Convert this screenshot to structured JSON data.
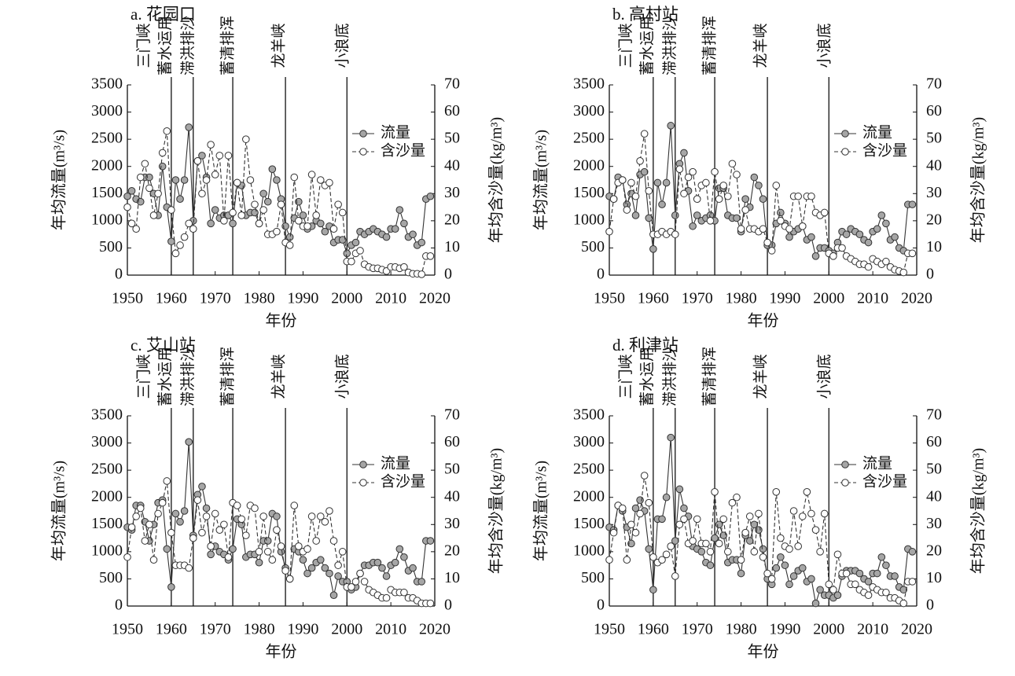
{
  "chart_data": [
    {
      "type": "line",
      "title": "a. 花园口",
      "xlabel": "年份",
      "ylabel": "年均流量(m³/s)",
      "y2label": "年均含沙量(kg/m³)",
      "x": [
        1950,
        1951,
        1952,
        1953,
        1954,
        1955,
        1956,
        1957,
        1958,
        1959,
        1960,
        1961,
        1962,
        1963,
        1964,
        1965,
        1966,
        1967,
        1968,
        1969,
        1970,
        1971,
        1972,
        1973,
        1974,
        1975,
        1976,
        1977,
        1978,
        1979,
        1980,
        1981,
        1982,
        1983,
        1984,
        1985,
        1986,
        1987,
        1988,
        1989,
        1990,
        1991,
        1992,
        1993,
        1994,
        1995,
        1996,
        1997,
        1998,
        1999,
        2000,
        2001,
        2002,
        2003,
        2004,
        2005,
        2006,
        2007,
        2008,
        2009,
        2010,
        2011,
        2012,
        2013,
        2014,
        2015,
        2016,
        2017,
        2018,
        2019
      ],
      "series": [
        {
          "name": "流量",
          "color": "#333333",
          "marker_fill": "#a6a6a6",
          "values": [
            1450,
            1550,
            1400,
            1350,
            1800,
            1800,
            1500,
            1100,
            2000,
            1250,
            620,
            1750,
            1400,
            1750,
            2720,
            1000,
            2100,
            2200,
            1800,
            950,
            1200,
            1050,
            1100,
            1100,
            950,
            1700,
            1650,
            1100,
            1150,
            1150,
            950,
            1500,
            1350,
            1950,
            1750,
            1400,
            900,
            700,
            1050,
            1350,
            1100,
            850,
            900,
            1000,
            950,
            800,
            900,
            600,
            650,
            650,
            400,
            550,
            600,
            800,
            750,
            800,
            850,
            800,
            750,
            700,
            850,
            850,
            1200,
            950,
            700,
            750,
            550,
            600,
            1400,
            1450
          ]
        },
        {
          "name": "含沙量",
          "color": "#333333",
          "marker_fill": "#ffffff",
          "axis": "y2",
          "values": [
            25,
            19,
            17,
            36,
            41,
            32,
            22,
            30,
            45,
            53,
            24,
            8,
            11,
            14,
            19,
            17,
            42,
            30,
            35,
            48,
            37,
            44,
            20,
            44,
            23,
            34,
            22,
            50,
            35,
            26,
            19,
            24,
            15,
            15,
            16,
            26,
            12,
            11,
            36,
            20,
            18,
            18,
            37,
            22,
            35,
            33,
            34,
            17,
            26,
            23,
            5,
            5,
            8,
            9,
            4,
            3,
            2.5,
            2.5,
            2,
            1.5,
            3,
            3,
            2.5,
            3,
            1,
            0.5,
            0.5,
            0.3,
            7,
            7
          ]
        }
      ],
      "xlim": [
        1950,
        2020
      ],
      "xticks": [
        1950,
        1960,
        1970,
        1980,
        1990,
        2000,
        2010,
        2020
      ],
      "ylim": [
        0,
        3500
      ],
      "yticks": [
        0,
        500,
        1000,
        1500,
        2000,
        2500,
        3000,
        3500
      ],
      "y2lim": [
        0,
        70
      ],
      "y2ticks": [
        0,
        10,
        20,
        30,
        40,
        50,
        60,
        70
      ],
      "event_labels": [
        "三门峡",
        "蓄水运用",
        "滞洪排沙",
        "蓄清排浑",
        "龙羊峡",
        "小浪底"
      ],
      "event_lines": [
        1960,
        1965,
        1974,
        1986,
        2000
      ],
      "legend": "upper right"
    },
    {
      "type": "line",
      "title": "b. 高村站",
      "xlabel": "年份",
      "ylabel": "年均流量(m³/s)",
      "y2label": "年均含沙量(kg/m³)",
      "x": [
        1950,
        1951,
        1952,
        1953,
        1954,
        1955,
        1956,
        1957,
        1958,
        1959,
        1960,
        1961,
        1962,
        1963,
        1964,
        1965,
        1966,
        1967,
        1968,
        1969,
        1970,
        1971,
        1972,
        1973,
        1974,
        1975,
        1976,
        1977,
        1978,
        1979,
        1980,
        1981,
        1982,
        1983,
        1984,
        1985,
        1986,
        1987,
        1988,
        1989,
        1990,
        1991,
        1992,
        1993,
        1994,
        1995,
        1996,
        1997,
        1998,
        1999,
        2000,
        2001,
        2002,
        2003,
        2004,
        2005,
        2006,
        2007,
        2008,
        2009,
        2010,
        2011,
        2012,
        2013,
        2014,
        2015,
        2016,
        2017,
        2018,
        2019
      ],
      "series": [
        {
          "name": "流量",
          "color": "#333333",
          "marker_fill": "#a6a6a6",
          "values": [
            1450,
            1400,
            1800,
            1750,
            1300,
            1500,
            1100,
            1850,
            1900,
            1050,
            480,
            1700,
            1300,
            1700,
            2750,
            1100,
            2050,
            2250,
            1550,
            900,
            1100,
            1000,
            1050,
            1100,
            1000,
            1600,
            1600,
            1100,
            1050,
            1050,
            800,
            1400,
            1250,
            1800,
            1650,
            1400,
            550,
            550,
            950,
            1150,
            950,
            700,
            800,
            850,
            900,
            650,
            700,
            350,
            500,
            500,
            450,
            400,
            600,
            800,
            750,
            850,
            800,
            750,
            650,
            600,
            800,
            850,
            1100,
            950,
            650,
            700,
            500,
            450,
            1300,
            1300
          ]
        },
        {
          "name": "含沙量",
          "color": "#333333",
          "marker_fill": "#ffffff",
          "axis": "y2",
          "values": [
            16,
            28,
            34,
            35,
            24,
            34,
            29,
            42,
            52,
            31,
            15,
            15,
            16,
            15,
            16,
            15,
            39,
            30,
            36,
            38,
            28,
            33,
            34,
            20,
            38,
            28,
            33,
            29,
            41,
            37,
            17,
            24,
            17,
            17,
            16,
            17,
            12,
            9,
            33,
            20,
            18,
            17,
            29,
            29,
            18,
            29,
            29,
            23,
            22,
            23,
            8,
            7,
            10,
            10,
            7,
            6,
            5,
            4,
            4,
            3,
            6,
            5,
            4,
            5,
            3,
            2,
            1.5,
            1,
            8,
            8
          ]
        }
      ],
      "xlim": [
        1950,
        2020
      ],
      "xticks": [
        1950,
        1960,
        1970,
        1980,
        1990,
        2000,
        2010,
        2020
      ],
      "ylim": [
        0,
        3500
      ],
      "yticks": [
        0,
        500,
        1000,
        1500,
        2000,
        2500,
        3000,
        3500
      ],
      "y2lim": [
        0,
        70
      ],
      "y2ticks": [
        0,
        10,
        20,
        30,
        40,
        50,
        60,
        70
      ],
      "event_labels": [
        "三门峡",
        "蓄水运用",
        "滞洪排沙",
        "蓄清排浑",
        "龙羊峡",
        "小浪底"
      ],
      "event_lines": [
        1960,
        1965,
        1974,
        1986,
        2000
      ],
      "legend": "upper right"
    },
    {
      "type": "line",
      "title": "c. 艾山站",
      "xlabel": "年份",
      "ylabel": "年均流量(m³/s)",
      "y2label": "年均含沙量(kg/m³)",
      "x": [
        1950,
        1951,
        1952,
        1953,
        1954,
        1955,
        1956,
        1957,
        1958,
        1959,
        1960,
        1961,
        1962,
        1963,
        1964,
        1965,
        1966,
        1967,
        1968,
        1969,
        1970,
        1971,
        1972,
        1973,
        1974,
        1975,
        1976,
        1977,
        1978,
        1979,
        1980,
        1981,
        1982,
        1983,
        1984,
        1985,
        1986,
        1987,
        1988,
        1989,
        1990,
        1991,
        1992,
        1993,
        1994,
        1995,
        1996,
        1997,
        1998,
        1999,
        2000,
        2001,
        2002,
        2003,
        2004,
        2005,
        2006,
        2007,
        2008,
        2009,
        2010,
        2011,
        2012,
        2013,
        2014,
        2015,
        2016,
        2017,
        2018,
        2019
      ],
      "series": [
        {
          "name": "流量",
          "color": "#333333",
          "marker_fill": "#a6a6a6",
          "values": [
            1450,
            1400,
            1850,
            1850,
            1550,
            1200,
            1500,
            1900,
            1950,
            1050,
            350,
            1700,
            1550,
            1750,
            3020,
            1300,
            2050,
            2200,
            1800,
            950,
            1100,
            1000,
            950,
            850,
            1050,
            1600,
            1500,
            900,
            950,
            950,
            800,
            1200,
            1200,
            1700,
            1650,
            1000,
            700,
            500,
            1050,
            1000,
            850,
            600,
            700,
            800,
            850,
            700,
            600,
            200,
            550,
            450,
            450,
            300,
            350,
            600,
            750,
            750,
            800,
            800,
            700,
            550,
            750,
            800,
            1050,
            900,
            650,
            700,
            450,
            450,
            1200,
            1200
          ]
        },
        {
          "name": "含沙量",
          "color": "#333333",
          "marker_fill": "#ffffff",
          "axis": "y2",
          "values": [
            18,
            29,
            33,
            36,
            24,
            30,
            17,
            34,
            38,
            46,
            27,
            15,
            15,
            15,
            14,
            25,
            39,
            27,
            33,
            22,
            34,
            28,
            30,
            18,
            38,
            37,
            32,
            26,
            37,
            36,
            20,
            33,
            20,
            17,
            28,
            22,
            13,
            10,
            37,
            22,
            20,
            21,
            33,
            24,
            33,
            31,
            35,
            24,
            15,
            20,
            7,
            7,
            9,
            12,
            9,
            6,
            5,
            4,
            3,
            3,
            6,
            5,
            5,
            5,
            3,
            3,
            2,
            1,
            1,
            1
          ]
        }
      ],
      "xlim": [
        1950,
        2020
      ],
      "xticks": [
        1950,
        1960,
        1970,
        1980,
        1990,
        2000,
        2010,
        2020
      ],
      "ylim": [
        0,
        3500
      ],
      "yticks": [
        0,
        500,
        1000,
        1500,
        2000,
        2500,
        3000,
        3500
      ],
      "y2lim": [
        0,
        70
      ],
      "y2ticks": [
        0,
        10,
        20,
        30,
        40,
        50,
        60,
        70
      ],
      "event_labels": [
        "三门峡",
        "蓄水运用",
        "滞洪排沙",
        "蓄清排浑",
        "龙羊峡",
        "小浪底"
      ],
      "event_lines": [
        1960,
        1965,
        1974,
        1986,
        2000
      ],
      "legend": "upper right"
    },
    {
      "type": "line",
      "title": "d. 利津站",
      "xlabel": "年份",
      "ylabel": "年均流量(m³/s)",
      "y2label": "年均含沙量(kg/m³)",
      "x": [
        1950,
        1951,
        1952,
        1953,
        1954,
        1955,
        1956,
        1957,
        1958,
        1959,
        1960,
        1961,
        1962,
        1963,
        1964,
        1965,
        1966,
        1967,
        1968,
        1969,
        1970,
        1971,
        1972,
        1973,
        1974,
        1975,
        1976,
        1977,
        1978,
        1979,
        1980,
        1981,
        1982,
        1983,
        1984,
        1985,
        1986,
        1987,
        1988,
        1989,
        1990,
        1991,
        1992,
        1993,
        1994,
        1995,
        1996,
        1997,
        1998,
        1999,
        2000,
        2001,
        2002,
        2003,
        2004,
        2005,
        2006,
        2007,
        2008,
        2009,
        2010,
        2011,
        2012,
        2013,
        2014,
        2015,
        2016,
        2017,
        2018,
        2019
      ],
      "series": [
        {
          "name": "流量",
          "color": "#333333",
          "marker_fill": "#a6a6a6",
          "values": [
            1450,
            1400,
            1850,
            1750,
            1450,
            1150,
            1800,
            1950,
            1750,
            1050,
            300,
            1600,
            1600,
            2000,
            3100,
            1200,
            2150,
            1800,
            1650,
            1100,
            1050,
            1000,
            800,
            750,
            1250,
            1500,
            1300,
            800,
            850,
            850,
            600,
            1300,
            1200,
            1500,
            1400,
            1050,
            500,
            400,
            700,
            900,
            750,
            400,
            550,
            650,
            700,
            450,
            500,
            50,
            300,
            200,
            200,
            150,
            200,
            550,
            650,
            650,
            650,
            600,
            500,
            450,
            600,
            600,
            900,
            750,
            550,
            550,
            350,
            300,
            1050,
            1000
          ]
        },
        {
          "name": "含沙量",
          "color": "#333333",
          "marker_fill": "#ffffff",
          "axis": "y2",
          "values": [
            17,
            27,
            37,
            36,
            17,
            30,
            27,
            34,
            48,
            38,
            18,
            16,
            17,
            19,
            22,
            11,
            30,
            32,
            23,
            24,
            32,
            23,
            23,
            20,
            42,
            23,
            32,
            20,
            38,
            40,
            17,
            27,
            33,
            20,
            34,
            18,
            12,
            10,
            42,
            25,
            22,
            21,
            35,
            22,
            33,
            42,
            34,
            28,
            20,
            34,
            8,
            6,
            19,
            12,
            12,
            8,
            8,
            6,
            5,
            4,
            7,
            6,
            5,
            5,
            3,
            3,
            2,
            1,
            9,
            9
          ]
        }
      ],
      "xlim": [
        1950,
        2020
      ],
      "xticks": [
        1950,
        1960,
        1970,
        1980,
        1990,
        2000,
        2010,
        2020
      ],
      "ylim": [
        0,
        3500
      ],
      "yticks": [
        0,
        500,
        1000,
        1500,
        2000,
        2500,
        3000,
        3500
      ],
      "y2lim": [
        0,
        70
      ],
      "y2ticks": [
        0,
        10,
        20,
        30,
        40,
        50,
        60,
        70
      ],
      "event_labels": [
        "三门峡",
        "蓄水运用",
        "滞洪排沙",
        "蓄清排浑",
        "龙羊峡",
        "小浪底"
      ],
      "event_lines": [
        1960,
        1965,
        1974,
        1986,
        2000
      ],
      "legend": "upper right"
    }
  ]
}
